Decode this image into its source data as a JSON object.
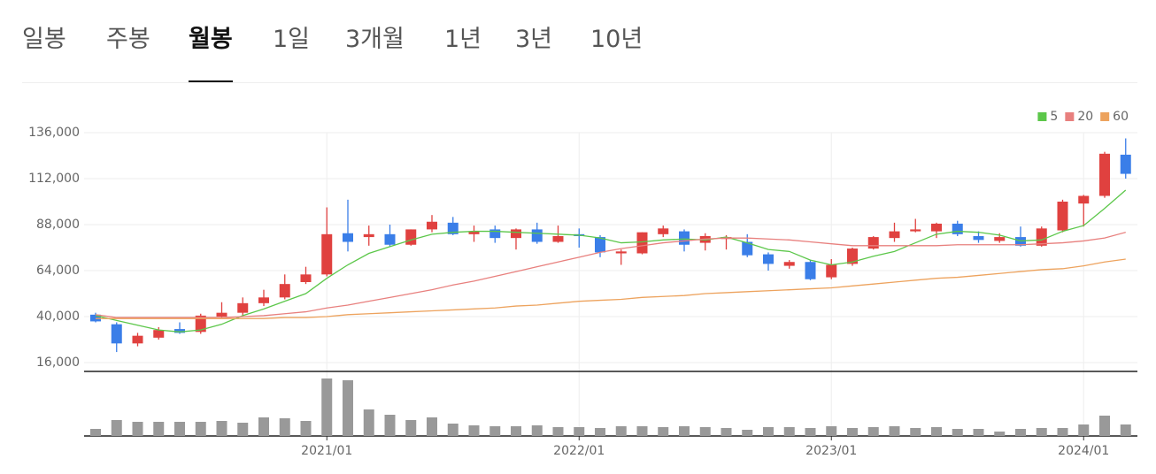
{
  "tabs": {
    "items": [
      "일봉",
      "주봉",
      "월봉",
      "1일",
      "3개월",
      "1년",
      "3년",
      "10년"
    ],
    "active": 2
  },
  "chart_data": {
    "type": "candlestick",
    "categories": [
      null,
      null,
      null,
      null,
      null,
      null,
      null,
      null,
      null,
      null,
      null,
      "2021/01",
      null,
      null,
      null,
      null,
      null,
      null,
      null,
      null,
      null,
      null,
      null,
      "2022/01",
      null,
      null,
      null,
      null,
      null,
      null,
      null,
      null,
      null,
      null,
      null,
      "2023/01",
      null,
      null,
      null,
      null,
      null,
      null,
      null,
      null,
      null,
      null,
      null,
      "2024/01",
      null,
      null
    ],
    "open": [
      41000,
      36000,
      26000,
      29000,
      33500,
      32000,
      40000,
      42000,
      47000,
      50000,
      58000,
      62000,
      83500,
      81500,
      83000,
      77500,
      85500,
      89000,
      83000,
      85500,
      81000,
      85500,
      79000,
      83000,
      81500,
      73000,
      73000,
      83000,
      84500,
      78500,
      80500,
      79000,
      72500,
      66500,
      68500,
      60500,
      67500,
      75500,
      81000,
      84500,
      84500,
      88500,
      82000,
      79500,
      81500,
      77000,
      85000,
      99000,
      103000,
      124500
    ],
    "high": [
      42000,
      37000,
      31500,
      34500,
      37000,
      41500,
      47500,
      50000,
      54000,
      62000,
      66000,
      97000,
      101000,
      87500,
      88000,
      85500,
      93000,
      92000,
      87500,
      87500,
      86000,
      89000,
      87500,
      86000,
      82500,
      75000,
      84000,
      87500,
      85500,
      83500,
      82500,
      83000,
      73500,
      69500,
      69500,
      70000,
      76000,
      82000,
      89000,
      91000,
      89000,
      90000,
      84500,
      83500,
      87000,
      87000,
      101000,
      103500,
      126000,
      133000
    ],
    "low": [
      37000,
      21500,
      24500,
      28000,
      31000,
      31000,
      39000,
      40000,
      45500,
      49000,
      57000,
      61000,
      74000,
      77000,
      76500,
      77000,
      84000,
      82500,
      79000,
      78500,
      75000,
      78000,
      78500,
      76000,
      71000,
      67000,
      72500,
      81500,
      74000,
      74500,
      75000,
      71000,
      64000,
      65000,
      59000,
      59500,
      66500,
      75000,
      79000,
      84000,
      81000,
      82000,
      78500,
      78500,
      76500,
      76500,
      84000,
      87000,
      102000,
      112000
    ],
    "close": [
      37500,
      26000,
      30000,
      33000,
      31500,
      40500,
      42000,
      47000,
      50000,
      57000,
      62000,
      83000,
      79000,
      83000,
      77500,
      85500,
      89500,
      83000,
      84500,
      81000,
      85500,
      79000,
      82000,
      82000,
      73500,
      74000,
      84000,
      86000,
      77500,
      82000,
      81500,
      72000,
      67500,
      68500,
      59500,
      67000,
      75500,
      81500,
      84500,
      85500,
      88500,
      83000,
      80000,
      81500,
      77000,
      86000,
      100000,
      103000,
      125000,
      114500
    ],
    "volume": [
      8,
      18,
      16,
      16,
      16,
      16,
      17,
      15,
      21,
      20,
      17,
      65,
      63,
      30,
      24,
      18,
      21,
      14,
      12,
      11,
      11,
      12,
      10,
      10,
      9,
      11,
      11,
      10,
      11,
      10,
      9,
      7,
      10,
      10,
      9,
      11,
      9,
      10,
      11,
      9,
      10,
      8,
      8,
      5,
      8,
      9,
      9,
      13,
      23,
      13
    ],
    "up_color": "#e0413f",
    "down_color": "#3a7ee8",
    "volume_color": "#999999",
    "series": [
      {
        "name": "5",
        "color": "#5cc74a",
        "values": [
          40500,
          38000,
          35500,
          33000,
          32000,
          33000,
          36000,
          40500,
          44000,
          48000,
          52000,
          60000,
          67000,
          73000,
          76500,
          80000,
          83000,
          84000,
          84500,
          84500,
          84000,
          83500,
          83000,
          82500,
          81000,
          78500,
          79000,
          80000,
          80500,
          80000,
          81500,
          78500,
          75000,
          74000,
          69500,
          67000,
          68500,
          71500,
          74000,
          78500,
          83000,
          84500,
          84000,
          82500,
          79500,
          80000,
          84500,
          87500,
          96500,
          106000
        ]
      },
      {
        "name": "20",
        "color": "#e8807e",
        "values": [
          41000,
          39500,
          39500,
          39500,
          39500,
          39500,
          39500,
          40000,
          40500,
          41500,
          42500,
          44500,
          46000,
          48000,
          50000,
          52000,
          54000,
          56500,
          58500,
          61000,
          63500,
          66000,
          68500,
          71000,
          73500,
          75500,
          77000,
          78500,
          79500,
          80500,
          81000,
          81000,
          80500,
          80000,
          79000,
          78000,
          77000,
          77000,
          77000,
          77000,
          77000,
          77500,
          77500,
          77500,
          77500,
          78000,
          78500,
          79500,
          81000,
          84000
        ]
      },
      {
        "name": "60",
        "color": "#eda35e",
        "values": [
          39000,
          39000,
          39000,
          39000,
          39000,
          39000,
          39000,
          39000,
          39000,
          39500,
          39500,
          40000,
          41000,
          41500,
          42000,
          42500,
          43000,
          43500,
          44000,
          44500,
          45500,
          46000,
          47000,
          48000,
          48500,
          49000,
          50000,
          50500,
          51000,
          52000,
          52500,
          53000,
          53500,
          54000,
          54500,
          55000,
          56000,
          57000,
          58000,
          59000,
          60000,
          60500,
          61500,
          62500,
          63500,
          64500,
          65000,
          66500,
          68500,
          70000
        ]
      }
    ],
    "ylim": [
      16000,
      136000
    ],
    "yticks": [
      {
        "value": 16000,
        "label": "16,000"
      },
      {
        "value": 40000,
        "label": "40,000"
      },
      {
        "value": 64000,
        "label": "64,000"
      },
      {
        "value": 88000,
        "label": "88,000"
      },
      {
        "value": 112000,
        "label": "112,000"
      },
      {
        "value": 136000,
        "label": "136,000"
      }
    ],
    "grid": true,
    "legend": "top-right"
  }
}
